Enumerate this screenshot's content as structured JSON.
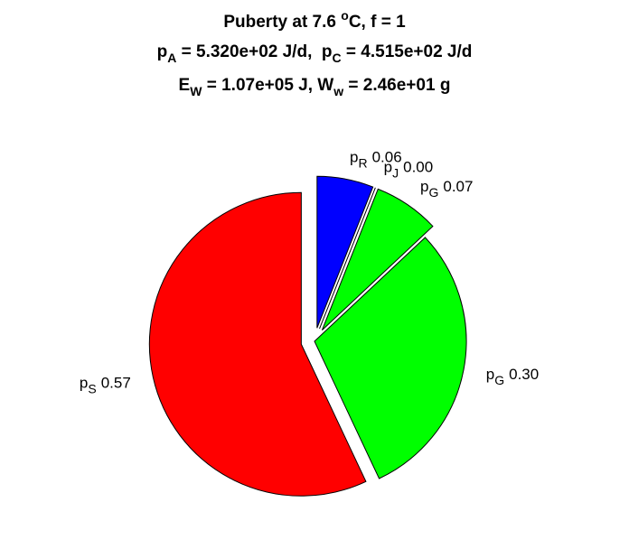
{
  "chart_data": {
    "type": "pie",
    "title": [
      [
        {
          "text": "Puberty at 7.6 "
        },
        {
          "text": "o",
          "sup": true
        },
        {
          "text": "C, f = 1"
        }
      ],
      [
        {
          "text": "p"
        },
        {
          "text": "A",
          "sub": true
        },
        {
          "text": " = 5.320e+02 J/d,  p"
        },
        {
          "text": "C",
          "sub": true
        },
        {
          "text": " = 4.515e+02 J/d"
        }
      ],
      [
        {
          "text": "E"
        },
        {
          "text": "W",
          "sub": true
        },
        {
          "text": " = 1.07e+05 J, W"
        },
        {
          "text": "w",
          "sub": true
        },
        {
          "text": " = 2.46e+01 g"
        }
      ]
    ],
    "categories": [
      {
        "base": "p",
        "sub": "R"
      },
      {
        "base": "p",
        "sub": "J"
      },
      {
        "base": "p",
        "sub": "G"
      },
      {
        "base": "p",
        "sub": "G"
      },
      {
        "base": "p",
        "sub": "S"
      }
    ],
    "values": [
      0.06,
      0.0,
      0.07,
      0.3,
      0.57
    ],
    "value_labels": [
      "0.06",
      "0.00",
      "0.07",
      "0.30",
      "0.57"
    ],
    "colors": [
      "#0000ff",
      "#a000a0",
      "#00ff00",
      "#00ff00",
      "#ff0000"
    ],
    "explode": [
      1,
      1,
      1,
      0,
      1
    ]
  }
}
